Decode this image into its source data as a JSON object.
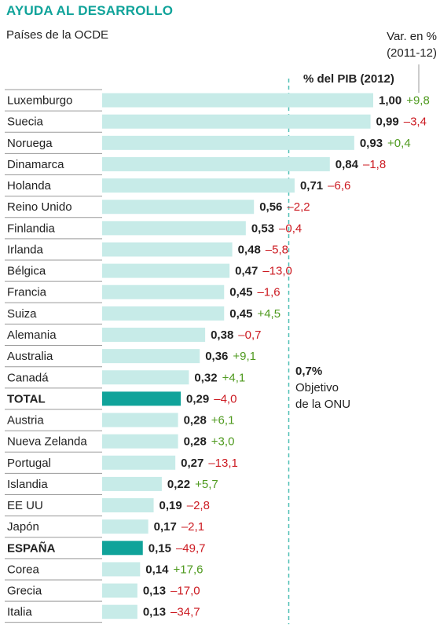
{
  "title": "AYUDA AL DESARROLLO",
  "subtitle": "Países de la OCDE",
  "var_label_line1": "Var. en %",
  "var_label_line2": "(2011-12)",
  "pib_label": "% del PIB (2012)",
  "target": {
    "value_label": "0,7%",
    "line1": "Objetivo",
    "line2": "de la ONU",
    "value": 0.7
  },
  "colors": {
    "bar": "#c7ebe8",
    "highlight": "#10a39a",
    "positive": "#4f9a1f",
    "negative": "#cc1b22",
    "title": "#10a39a",
    "dashed": "#4fbfb5"
  },
  "chart_data": {
    "type": "bar",
    "orientation": "horizontal",
    "title": "AYUDA AL DESARROLLO",
    "subtitle": "Países de la OCDE",
    "categories": [
      "Luxemburgo",
      "Suecia",
      "Noruega",
      "Dinamarca",
      "Holanda",
      "Reino Unido",
      "Finlandia",
      "Irlanda",
      "Bélgica",
      "Francia",
      "Suiza",
      "Alemania",
      "Australia",
      "Canadá",
      "TOTAL",
      "Austria",
      "Nueva Zelanda",
      "Portugal",
      "Islandia",
      "EE UU",
      "Japón",
      "ESPAÑA",
      "Corea",
      "Grecia",
      "Italia"
    ],
    "highlighted": [
      "TOTAL",
      "ESPAÑA"
    ],
    "series": [
      {
        "name": "% del PIB (2012)",
        "values": [
          1.0,
          0.99,
          0.93,
          0.84,
          0.71,
          0.56,
          0.53,
          0.48,
          0.47,
          0.45,
          0.45,
          0.38,
          0.36,
          0.32,
          0.29,
          0.28,
          0.28,
          0.27,
          0.22,
          0.19,
          0.17,
          0.15,
          0.14,
          0.13,
          0.13
        ],
        "labels": [
          "1,00",
          "0,99",
          "0,93",
          "0,84",
          "0,71",
          "0,56",
          "0,53",
          "0,48",
          "0,47",
          "0,45",
          "0,45",
          "0,38",
          "0,36",
          "0,32",
          "0,29",
          "0,28",
          "0,28",
          "0,27",
          "0,22",
          "0,19",
          "0,17",
          "0,15",
          "0,14",
          "0,13",
          "0,13"
        ]
      },
      {
        "name": "Var. en % (2011-12)",
        "values": [
          9.8,
          -3.4,
          0.4,
          -1.8,
          -6.6,
          -2.2,
          -0.4,
          -5.8,
          -13.0,
          -1.6,
          4.5,
          -0.7,
          9.1,
          4.1,
          -4.0,
          6.1,
          3.0,
          -13.1,
          5.7,
          -2.8,
          -2.1,
          -49.7,
          17.6,
          -17.0,
          -34.7
        ],
        "labels": [
          "+9,8",
          "–3,4",
          "+0,4",
          "–1,8",
          "–6,6",
          "–2,2",
          "–0,4",
          "–5,8",
          "–13,0",
          "–1,6",
          "+4,5",
          "–0,7",
          "+9,1",
          "+4,1",
          "–4,0",
          "+6,1",
          "+3,0",
          "–13,1",
          "+5,7",
          "–2,8",
          "–2,1",
          "–49,7",
          "+17,6",
          "–17,0",
          "–34,7"
        ]
      }
    ],
    "xlim": [
      0,
      1.0
    ],
    "reference_line": 0.7
  }
}
